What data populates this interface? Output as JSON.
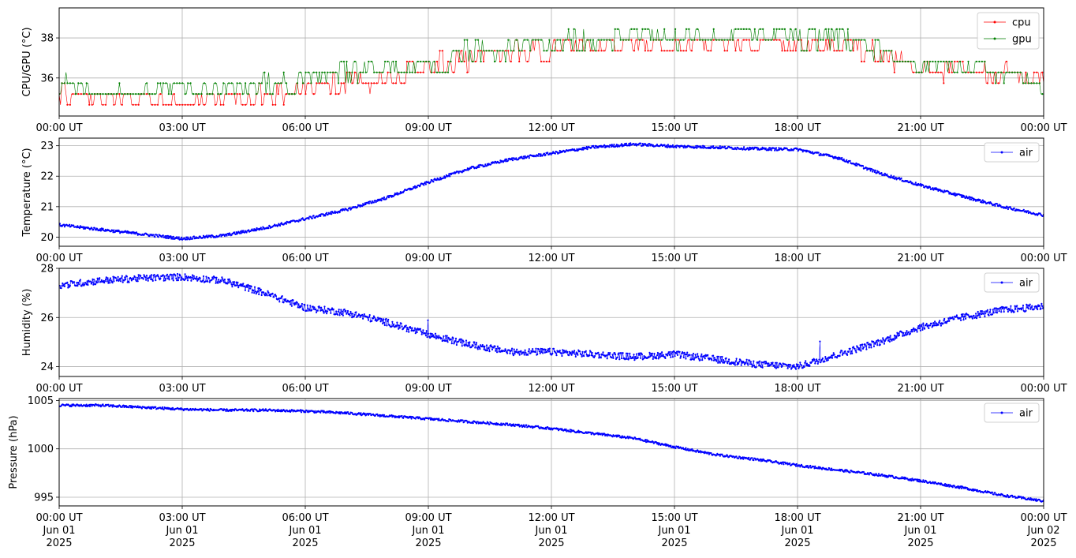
{
  "colors": {
    "cpu": "#ff0000",
    "gpu": "#008000",
    "air": "#0000ff",
    "grid": "#b0b0b0"
  },
  "x_ticks": [
    "00:00 UT",
    "03:00 UT",
    "06:00 UT",
    "09:00 UT",
    "12:00 UT",
    "15:00 UT",
    "18:00 UT",
    "21:00 UT",
    "00:00 UT"
  ],
  "x_date_labels": [
    {
      "line1": "Jun 01",
      "line2": "2025"
    },
    {
      "line1": "Jun 01",
      "line2": "2025"
    },
    {
      "line1": "Jun 01",
      "line2": "2025"
    },
    {
      "line1": "Jun 01",
      "line2": "2025"
    },
    {
      "line1": "Jun 01",
      "line2": "2025"
    },
    {
      "line1": "Jun 01",
      "line2": "2025"
    },
    {
      "line1": "Jun 01",
      "line2": "2025"
    },
    {
      "line1": "Jun 01",
      "line2": "2025"
    },
    {
      "line1": "Jun 02",
      "line2": "2025"
    }
  ],
  "chart_data": [
    {
      "type": "line",
      "ylabel": "CPU/GPU (°C)",
      "xlim_hours": [
        0,
        24
      ],
      "ylim": [
        34.1,
        39.5
      ],
      "yticks": [
        36,
        38
      ],
      "grid": true,
      "legend": "top-right",
      "series": [
        {
          "name": "cpu",
          "x_hours": [
            0,
            1.5,
            3,
            4.5,
            6,
            7.5,
            9,
            10.5,
            12,
            13.5,
            15,
            16.5,
            17.5,
            18,
            19.5,
            20.5,
            21,
            22.5,
            24
          ],
          "values": [
            35.0,
            34.9,
            34.8,
            34.8,
            35.4,
            35.8,
            36.4,
            37.0,
            37.4,
            37.5,
            37.6,
            37.6,
            37.5,
            37.5,
            37.4,
            36.8,
            36.4,
            36.3,
            35.7
          ]
        },
        {
          "name": "gpu",
          "x_hours": [
            0,
            1.5,
            3,
            4.5,
            6,
            7.5,
            9,
            10.5,
            12,
            13.5,
            15,
            16.5,
            17.5,
            18,
            19.5,
            20.5,
            21,
            22.5,
            24
          ],
          "values": [
            35.5,
            35.4,
            35.4,
            35.4,
            35.8,
            36.3,
            36.6,
            37.4,
            37.7,
            37.9,
            38.0,
            38.0,
            38.1,
            38.0,
            37.7,
            37.0,
            36.5,
            36.3,
            35.8
          ]
        }
      ]
    },
    {
      "type": "line",
      "ylabel": "Temperature (°C)",
      "xlim_hours": [
        0,
        24
      ],
      "ylim": [
        19.7,
        23.25
      ],
      "yticks": [
        20,
        21,
        22,
        23
      ],
      "grid": true,
      "legend": "top-right",
      "series": [
        {
          "name": "air",
          "x_hours": [
            0,
            1,
            2,
            3,
            4,
            5,
            6,
            7,
            8,
            9,
            10,
            11,
            12,
            13,
            14,
            15,
            16,
            17,
            18,
            19,
            20,
            21,
            22,
            23,
            24
          ],
          "values": [
            20.4,
            20.25,
            20.1,
            19.95,
            20.05,
            20.3,
            20.6,
            20.9,
            21.3,
            21.8,
            22.25,
            22.55,
            22.75,
            22.95,
            23.05,
            22.98,
            22.95,
            22.9,
            22.88,
            22.6,
            22.1,
            21.7,
            21.35,
            21.0,
            20.72
          ]
        }
      ]
    },
    {
      "type": "line",
      "ylabel": "Humidity (%)",
      "xlim_hours": [
        0,
        24
      ],
      "ylim": [
        23.6,
        28.0
      ],
      "yticks": [
        24,
        26,
        28
      ],
      "grid": true,
      "legend": "top-right",
      "series": [
        {
          "name": "air",
          "x_hours": [
            0,
            1,
            2,
            3,
            4,
            5,
            6,
            7,
            8,
            9,
            10,
            11,
            12,
            13,
            14,
            15,
            16,
            17,
            18,
            19,
            20,
            21,
            22,
            23,
            24
          ],
          "values": [
            27.3,
            27.5,
            27.6,
            27.65,
            27.5,
            27.0,
            26.4,
            26.2,
            25.8,
            25.3,
            24.9,
            24.6,
            24.6,
            24.5,
            24.4,
            24.5,
            24.3,
            24.1,
            24.0,
            24.5,
            25.0,
            25.6,
            26.0,
            26.3,
            26.45
          ]
        }
      ]
    },
    {
      "type": "line",
      "ylabel": "Pressure (hPa)",
      "xlim_hours": [
        0,
        24
      ],
      "ylim": [
        994.1,
        1005.2
      ],
      "yticks": [
        995,
        1000,
        1005
      ],
      "grid": true,
      "legend": "top-right",
      "series": [
        {
          "name": "air",
          "x_hours": [
            0,
            1,
            2,
            3,
            4,
            5,
            6,
            7,
            8,
            9,
            10,
            11,
            12,
            13,
            14,
            15,
            16,
            17,
            18,
            19,
            20,
            21,
            22,
            23,
            24
          ],
          "values": [
            1004.5,
            1004.5,
            1004.3,
            1004.1,
            1004.0,
            1004.0,
            1003.9,
            1003.7,
            1003.4,
            1003.1,
            1002.8,
            1002.5,
            1002.1,
            1001.6,
            1001.1,
            1000.2,
            999.4,
            998.9,
            998.3,
            997.8,
            997.3,
            996.7,
            996.0,
            995.2,
            994.6
          ]
        }
      ]
    }
  ]
}
